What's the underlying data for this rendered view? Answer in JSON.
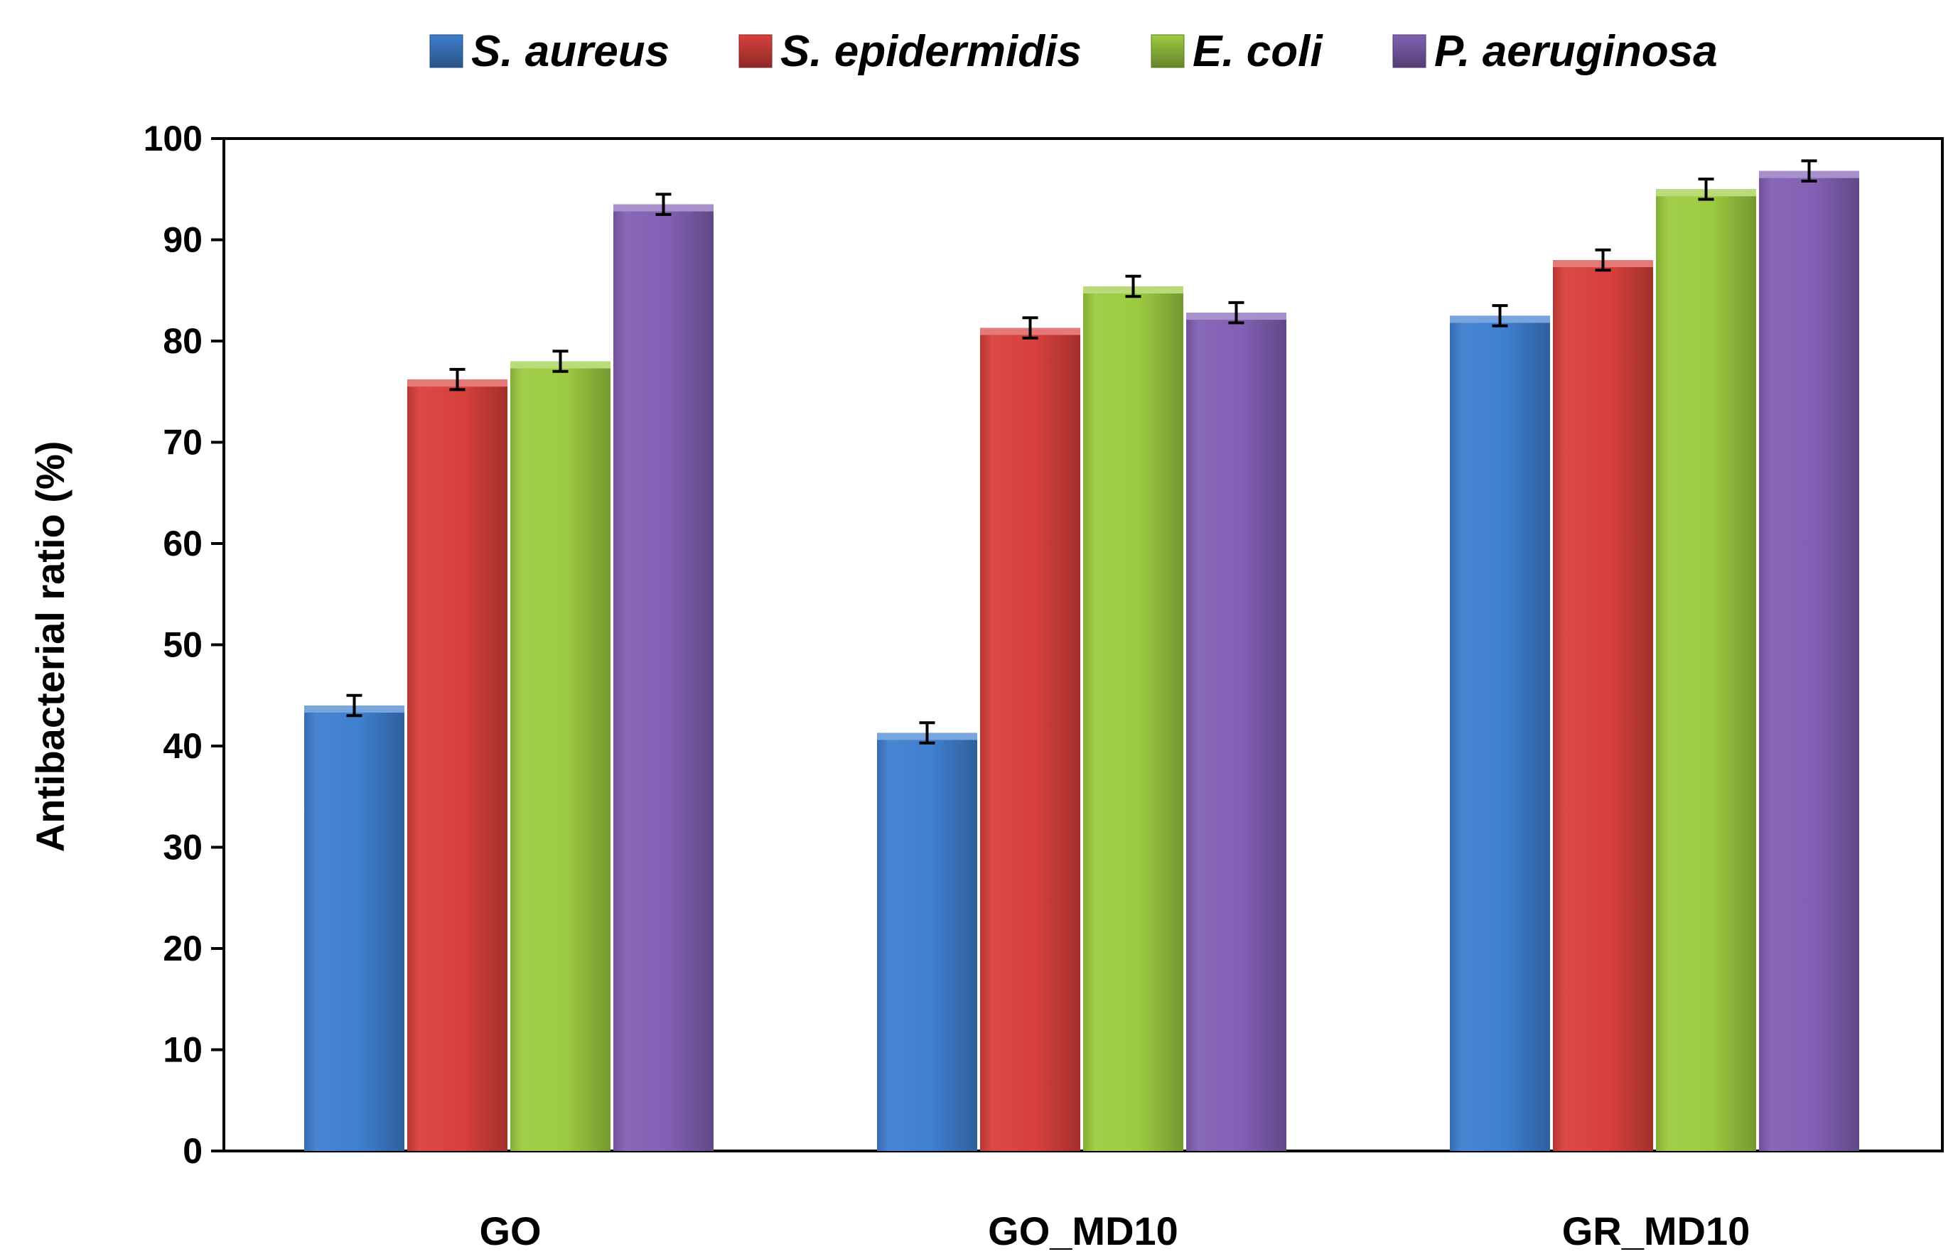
{
  "chart_data": {
    "type": "bar",
    "title": "",
    "xlabel": "",
    "ylabel": "Antibacterial ratio (%)",
    "ylim": [
      0,
      100
    ],
    "yticks": [
      0,
      10,
      20,
      30,
      40,
      50,
      60,
      70,
      80,
      90,
      100
    ],
    "grid": false,
    "legend_position": "top",
    "categories": [
      "GO",
      "GO_MD10",
      "GR_MD10"
    ],
    "series": [
      {
        "name": "S. aureus",
        "color": "#3f7fd0",
        "values": [
          44.0,
          41.3,
          82.5
        ],
        "errors": [
          1.0,
          1.0,
          1.0
        ]
      },
      {
        "name": "S. epidermidis",
        "color": "#d8403c",
        "values": [
          76.2,
          81.3,
          88.0
        ],
        "errors": [
          1.0,
          1.0,
          1.0
        ]
      },
      {
        "name": "E. coli",
        "color": "#9ccb40",
        "values": [
          78.0,
          85.4,
          95.0
        ],
        "errors": [
          1.0,
          1.0,
          1.0
        ]
      },
      {
        "name": "P. aeruginosa",
        "color": "#8260b4",
        "values": [
          93.5,
          82.8,
          96.8
        ],
        "errors": [
          1.0,
          1.0,
          1.0
        ]
      }
    ]
  }
}
